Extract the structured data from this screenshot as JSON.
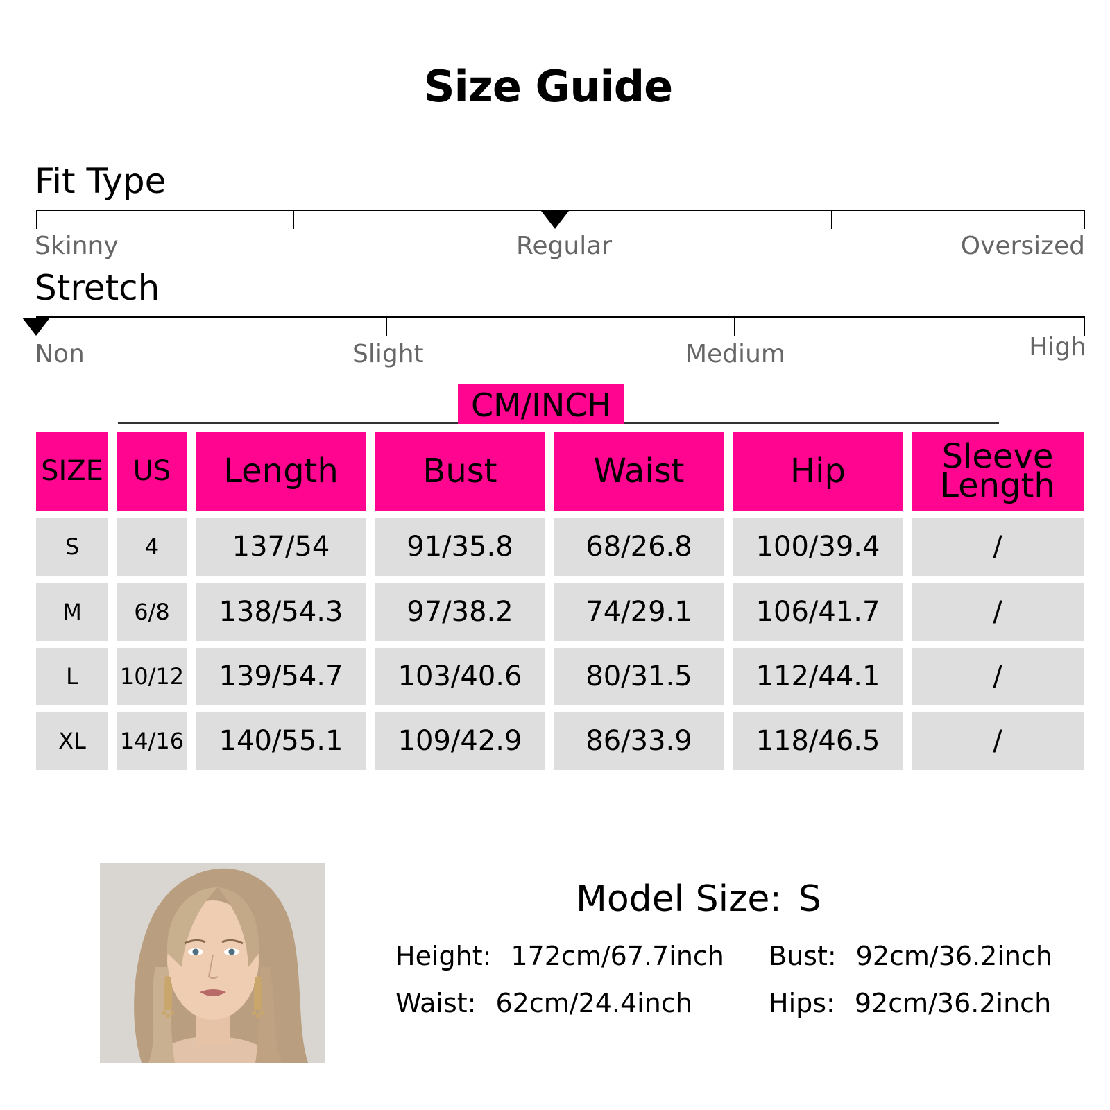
{
  "title": "Size Guide",
  "fit_type": {
    "title": "Fit Type",
    "labels": {
      "left": "Skinny",
      "center": "Regular",
      "right": "Oversized"
    },
    "selected": "Regular"
  },
  "stretch": {
    "title": "Stretch",
    "labels": [
      "Non",
      "Slight",
      "Medium",
      "High"
    ],
    "selected": "Non"
  },
  "unit_label": "CM/INCH",
  "table": {
    "headers": [
      "SIZE",
      "US",
      "Length",
      "Bust",
      "Waist",
      "Hip",
      "Sleeve Length"
    ],
    "rows": [
      [
        "S",
        "4",
        "137/54",
        "91/35.8",
        "68/26.8",
        "100/39.4",
        "/"
      ],
      [
        "M",
        "6/8",
        "138/54.3",
        "97/38.2",
        "74/29.1",
        "106/41.7",
        "/"
      ],
      [
        "L",
        "10/12",
        "139/54.7",
        "103/40.6",
        "80/31.5",
        "112/44.1",
        "/"
      ],
      [
        "XL",
        "14/16",
        "140/55.1",
        "109/42.9",
        "86/33.9",
        "118/46.5",
        "/"
      ]
    ]
  },
  "model": {
    "size_label": "Model Size:",
    "size_value": "S",
    "height_label": "Height:",
    "height_value": "172cm/67.7inch",
    "bust_label": "Bust:",
    "bust_value": "92cm/36.2inch",
    "waist_label": "Waist:",
    "waist_value": "62cm/24.4inch",
    "hips_label": "Hips:",
    "hips_value": "92cm/36.2inch"
  },
  "colors": {
    "accent": "#ff0590",
    "cell_bg": "#dedede",
    "label_gray": "#666666"
  }
}
